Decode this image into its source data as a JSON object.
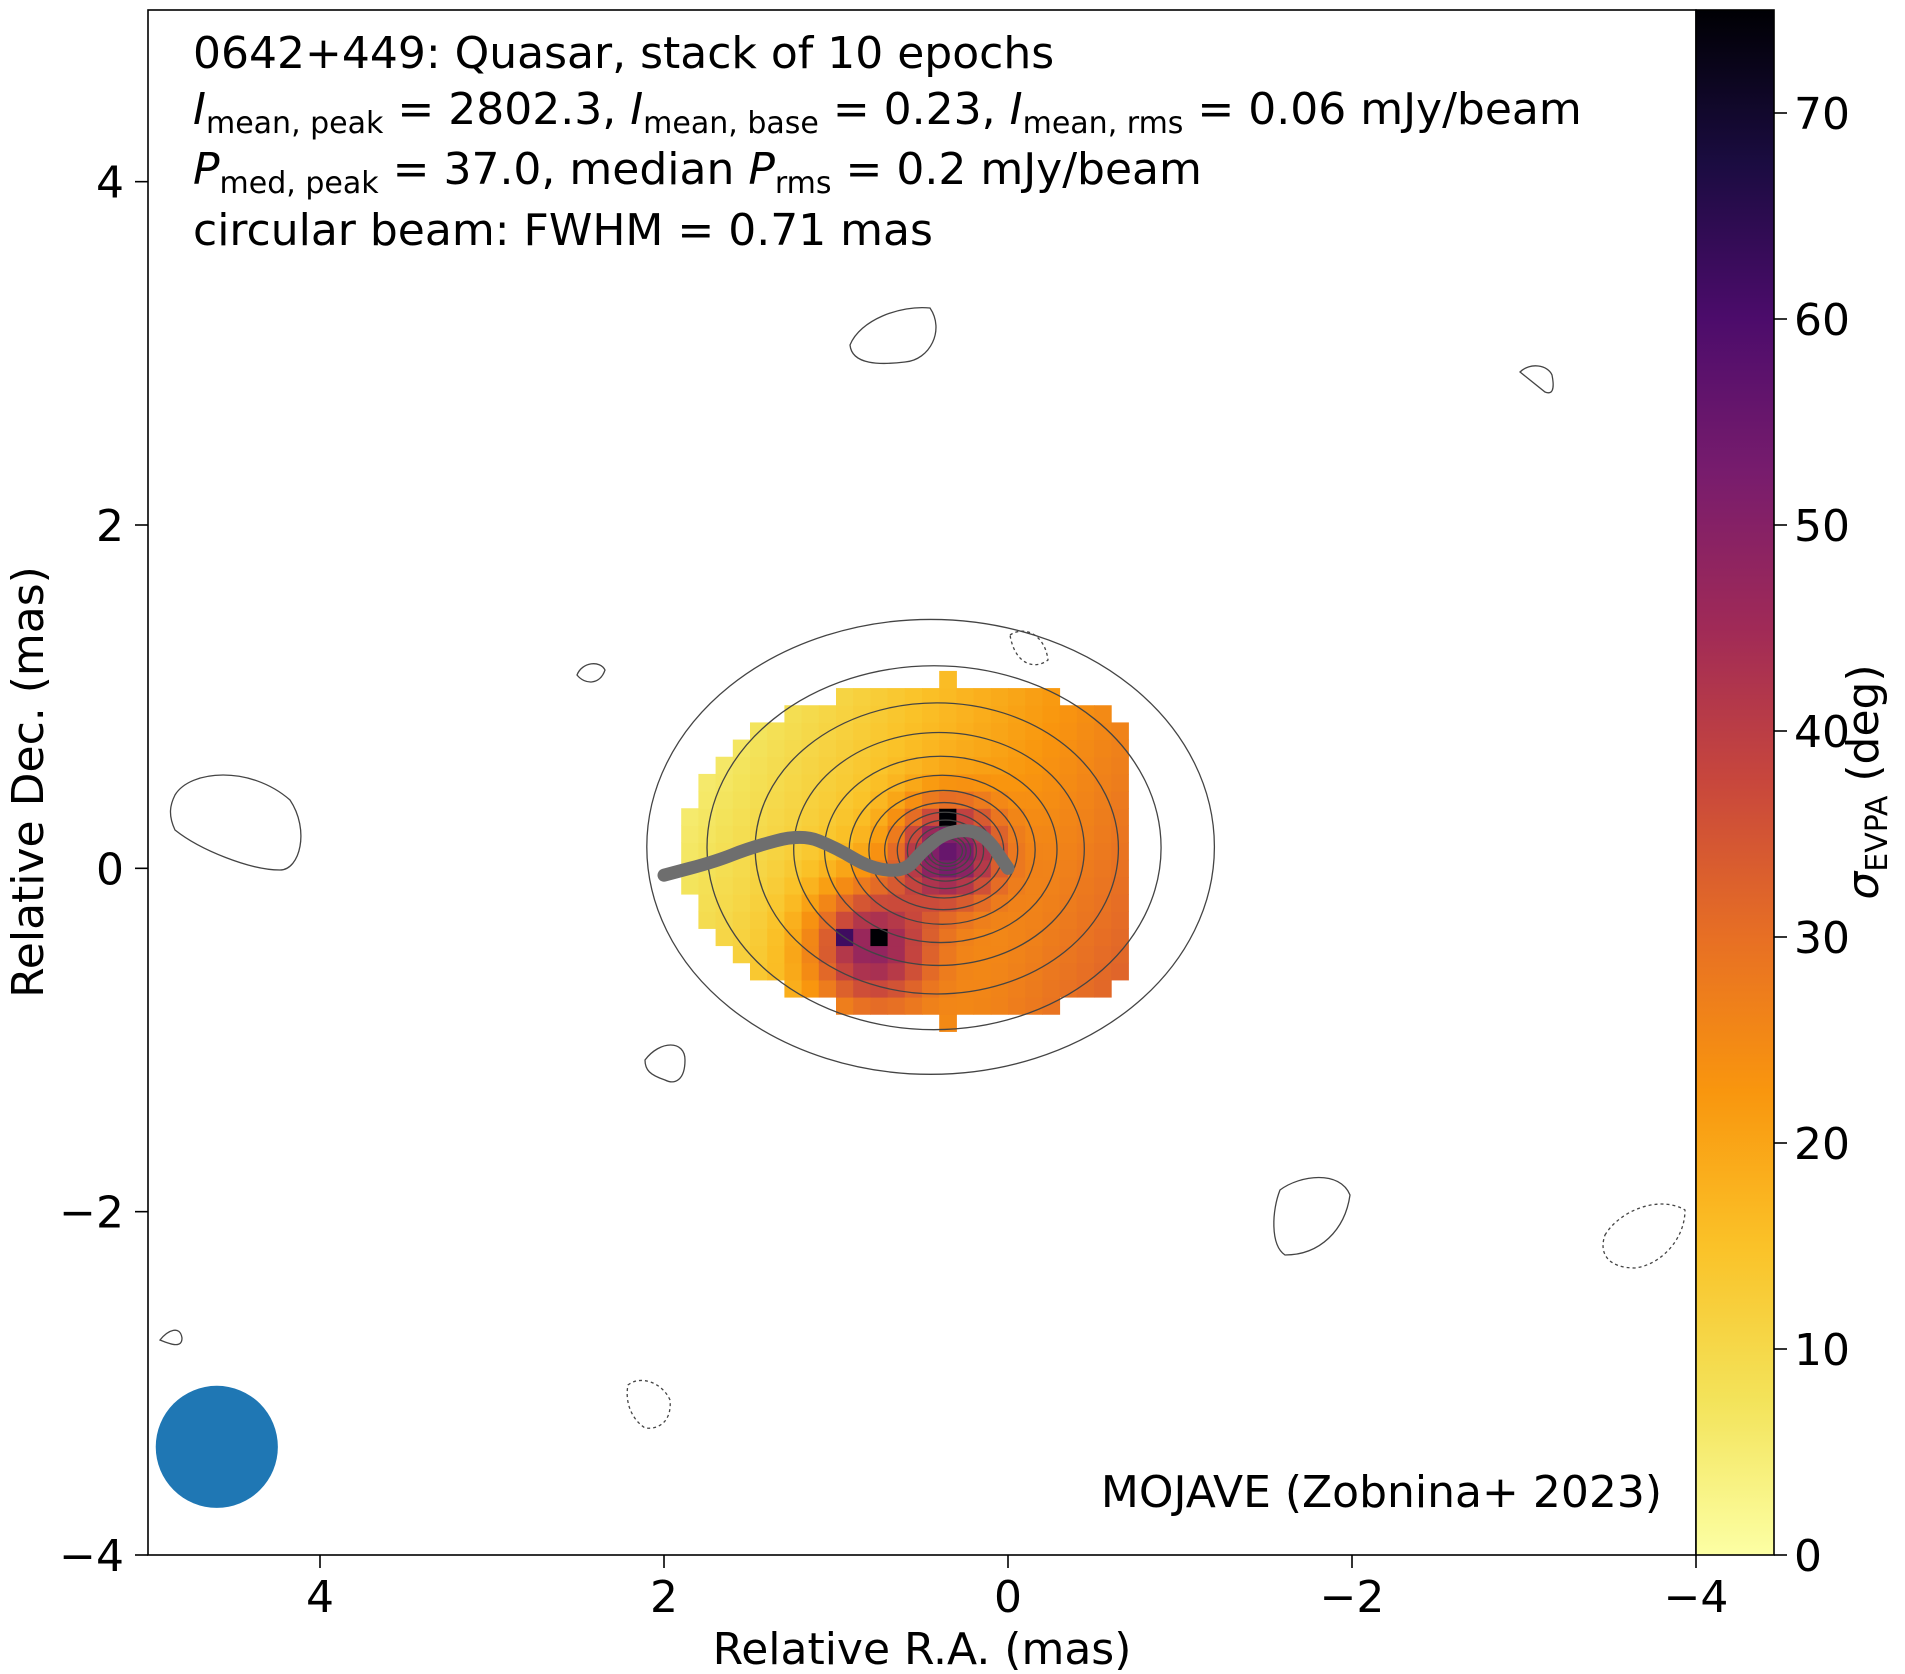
{
  "chart_data": {
    "type": "heatmap",
    "title_lines": [
      "0642+449: Quasar, stack of 10 epochs",
      "I_mean,peak = 2802.3, I_mean,base = 0.23, I_mean,rms = 0.06 mJy/beam",
      "P_med,peak = 37.0, median P_rms = 0.2 mJy/beam",
      "circular beam: FWHM = 0.71 mas"
    ],
    "title": {
      "line1": "0642+449: Quasar, stack of 10 epochs",
      "line2": {
        "a": "I",
        "a_sub": "mean, peak",
        "a_val": " = 2802.3, ",
        "b": "I",
        "b_sub": "mean, base",
        "b_val": " = 0.23, ",
        "c": "I",
        "c_sub": "mean, rms",
        "c_val": " = 0.06 mJy/beam"
      },
      "line3": {
        "a": "P",
        "a_sub": "med, peak",
        "a_val": " = 37.0, median ",
        "b": "P",
        "b_sub": "rms",
        "b_val": " = 0.2 mJy/beam"
      },
      "line4": "circular beam: FWHM = 0.71 mas"
    },
    "credit": "MOJAVE (Zobnina+ 2023)",
    "xlabel": "Relative R.A. (mas)",
    "ylabel": "Relative Dec. (mas)",
    "colorbar_label": {
      "sym": "σ",
      "sub": "EVPA",
      "rest": " (deg)"
    },
    "xlim": [
      5.0,
      -4.0
    ],
    "ylim": [
      -4.0,
      5.0
    ],
    "x_ticks": [
      4,
      2,
      0,
      -2,
      -4
    ],
    "x_tick_labels": [
      "4",
      "2",
      "0",
      "−2",
      "−4"
    ],
    "y_ticks": [
      -4,
      -2,
      0,
      2,
      4
    ],
    "y_tick_labels": [
      "−4",
      "−2",
      "0",
      "2",
      "4"
    ],
    "colorbar_range": [
      0,
      75
    ],
    "colorbar_ticks": [
      0,
      10,
      20,
      30,
      40,
      50,
      60,
      70
    ],
    "colorbar_tick_labels": [
      "0",
      "10",
      "20",
      "30",
      "40",
      "50",
      "60",
      "70"
    ],
    "colormap": "inferno_r",
    "beam": {
      "fwhm_mas": 0.71,
      "center": [
        4.6,
        -3.37
      ],
      "color": "#1f77b4"
    },
    "ridge_line": {
      "color": "#6e6e6e",
      "points": [
        [
          2.0,
          -0.04
        ],
        [
          1.7,
          0.04
        ],
        [
          1.5,
          0.12
        ],
        [
          1.2,
          0.2
        ],
        [
          1.0,
          0.12
        ],
        [
          0.8,
          0.0
        ],
        [
          0.6,
          -0.02
        ],
        [
          0.5,
          0.1
        ],
        [
          0.35,
          0.22
        ],
        [
          0.15,
          0.22
        ],
        [
          0.0,
          0.0
        ]
      ]
    },
    "contours_mJy": {
      "base_level": 0.23,
      "levels_count": 14,
      "core_center": [
        0.35,
        0.1
      ],
      "outer_extent": {
        "x": [
          2.1,
          -1.2
        ],
        "y": [
          -1.2,
          1.45
        ]
      }
    },
    "evpa_sigma_map": {
      "pixel_size_mas": 0.1,
      "center": [
        0.35,
        0.1
      ],
      "extent_x": [
        1.95,
        -0.7
      ],
      "extent_y": [
        -0.9,
        1.1
      ],
      "peak_spots": [
        [
          0.35,
          0.25,
          75
        ],
        [
          0.75,
          -0.45,
          75
        ],
        [
          0.9,
          -0.45,
          62
        ]
      ]
    }
  }
}
